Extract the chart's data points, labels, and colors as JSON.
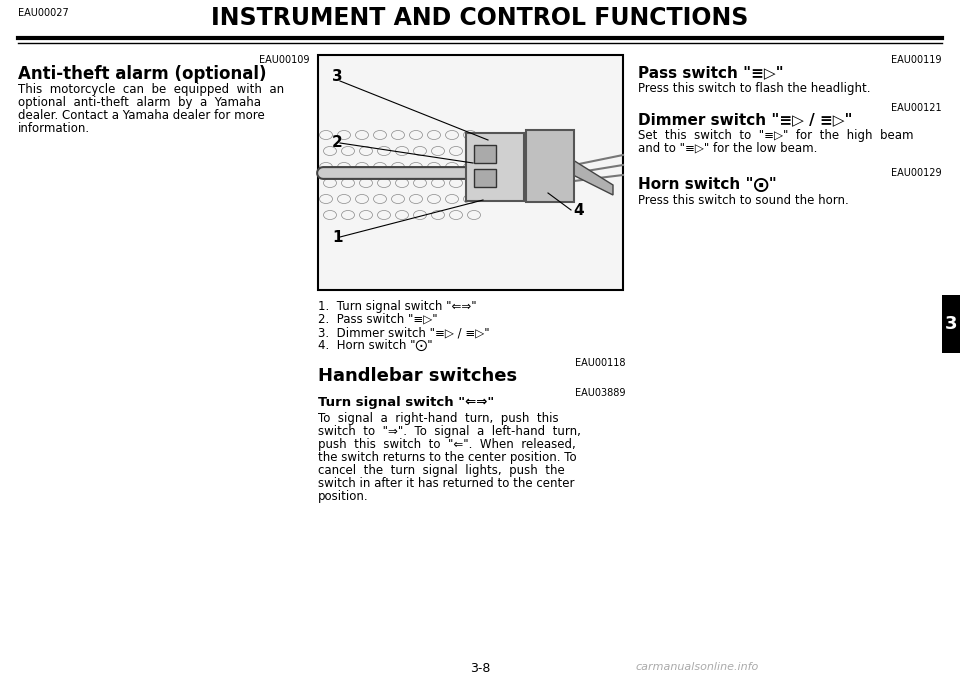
{
  "bg_color": "#ffffff",
  "title": "INSTRUMENT AND CONTROL FUNCTIONS",
  "title_ref": "EAU00027",
  "page_number": "3-8",
  "tab_number": "3",
  "tab_bg": "#000000",
  "tab_text_color": "#ffffff",
  "left_col": {
    "ref": "EAU00109",
    "heading": "Anti-theft alarm (optional)",
    "body_lines": [
      "This  motorcycle  can  be  equipped  with  an",
      "optional  anti-theft  alarm  by  a  Yamaha",
      "dealer. Contact a Yamaha dealer for more",
      "information."
    ]
  },
  "captions": [
    "1.  Turn signal switch \"⇐⇒\"",
    "2.  Pass switch \"≡▷\"",
    "3.  Dimmer switch \"≡▷ / ≡▷\"",
    "4.  Horn switch \"⨀\""
  ],
  "mid_section_ref": "EAU00118",
  "mid_heading": "Handlebar switches",
  "turn_signal_ref": "EAU03889",
  "turn_signal_heading": "Turn signal switch \"⇐⇒\"",
  "turn_signal_body_lines": [
    "To  signal  a  right-hand  turn,  push  this",
    "switch  to  \"⇒\".  To  signal  a  left-hand  turn,",
    "push  this  switch  to  \"⇐\".  When  released,",
    "the switch returns to the center position. To",
    "cancel  the  turn  signal  lights,  push  the",
    "switch in after it has returned to the center",
    "position."
  ],
  "right_col": {
    "pass_ref": "EAU00119",
    "pass_heading": "Pass switch \"≡▷\"",
    "pass_body": "Press this switch to flash the headlight.",
    "dimmer_ref": "EAU00121",
    "dimmer_heading": "Dimmer switch \"≡▷ / ≡▷\"",
    "dimmer_body_lines": [
      "Set  this  switch  to  \"≡▷\"  for  the  high  beam",
      "and to \"≡▷\" for the low beam."
    ],
    "horn_ref": "EAU00129",
    "horn_heading": "Horn switch \"⨀\"",
    "horn_body": "Press this switch to sound the horn."
  },
  "watermark": "carmanualsonline.info"
}
